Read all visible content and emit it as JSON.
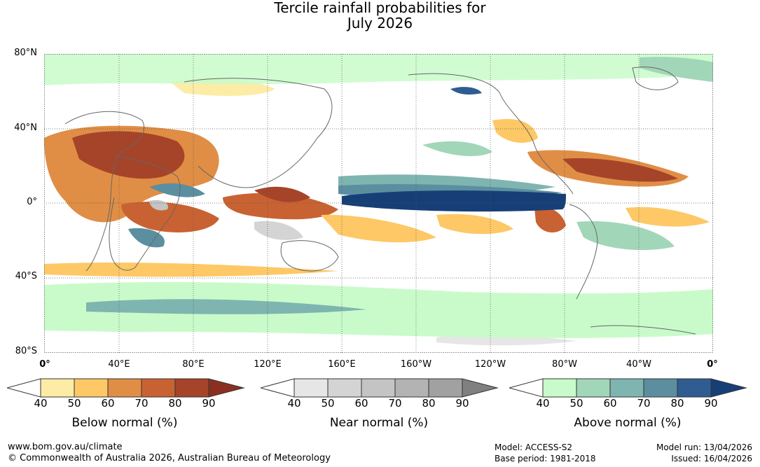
{
  "title": {
    "line1": "Tercile rainfall probabilities for",
    "line2": "July 2026"
  },
  "map": {
    "lat_labels": [
      "80°N",
      "40°N",
      "0°",
      "40°S",
      "80°S"
    ],
    "lon_labels": [
      "0°",
      "40°E",
      "80°E",
      "120°E",
      "160°E",
      "160°W",
      "120°W",
      "80°W",
      "40°W",
      "0°"
    ]
  },
  "legends": [
    {
      "title": "Below normal (%)",
      "tick_labels": [
        "40",
        "50",
        "60",
        "70",
        "80",
        "90"
      ],
      "colors": [
        "#ffffff",
        "#fdeca6",
        "#fdc865",
        "#e08e45",
        "#c96232",
        "#a6442a",
        "#8b3020"
      ]
    },
    {
      "title": "Near normal (%)",
      "tick_labels": [
        "40",
        "50",
        "60",
        "70",
        "80",
        "90"
      ],
      "colors": [
        "#ffffff",
        "#e6e6e6",
        "#d4d4d4",
        "#c4c4c4",
        "#b3b3b3",
        "#a1a1a1",
        "#808080"
      ]
    },
    {
      "title": "Above normal (%)",
      "tick_labels": [
        "40",
        "50",
        "60",
        "70",
        "80",
        "90"
      ],
      "colors": [
        "#ffffff",
        "#c9fbca",
        "#a2d6b8",
        "#7fb5b0",
        "#5b8fa0",
        "#2f5d91",
        "#163f77"
      ]
    }
  ],
  "footer": {
    "website": "www.bom.gov.au/climate",
    "copyright": "© Commonwealth of Australia 2026, Australian Bureau of Meteorology",
    "model": "Model: ACCESS-S2",
    "base_period": "Base period: 1981-2018",
    "model_run": "Model run: 13/04/2026",
    "issued": "Issued: 16/04/2026"
  }
}
